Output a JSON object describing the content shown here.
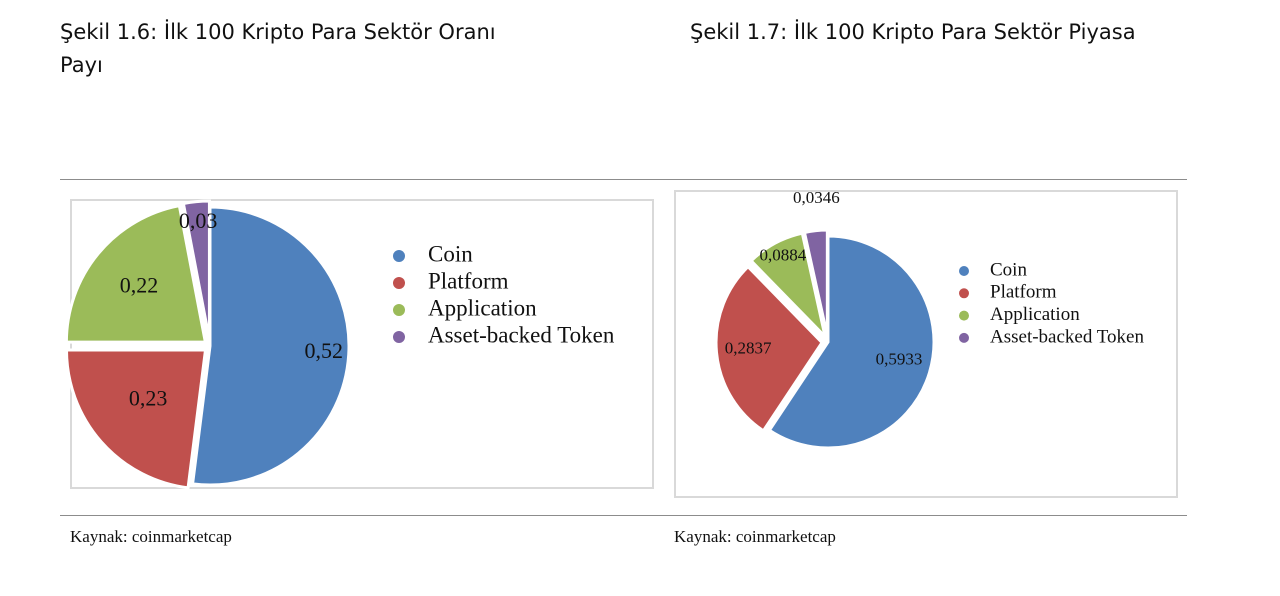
{
  "figures": [
    {
      "title": "Şekil 1.6: İlk 100 Kripto Para Sektör Oranı Payı",
      "source": "Kaynak: coinmarketcap"
    },
    {
      "title": "Şekil 1.7: İlk 100 Kripto Para Sektör Piyasa",
      "source": "Kaynak: coinmarketcap"
    }
  ],
  "chart_data": [
    {
      "type": "pie",
      "categories": [
        "Coin",
        "Platform",
        "Application",
        "Asset-backed Token"
      ],
      "values": [
        0.52,
        0.23,
        0.22,
        0.03
      ],
      "value_labels": [
        "0,52",
        "0,23",
        "0,22",
        "0,03"
      ],
      "colors": [
        "#4f81bd",
        "#c0504d",
        "#9bbb59",
        "#8064a2"
      ],
      "legend": [
        "Coin",
        "Platform",
        "Application",
        "Asset-backed Token"
      ],
      "legend_position": "right",
      "exploded": true
    },
    {
      "type": "pie",
      "categories": [
        "Coin",
        "Platform",
        "Application",
        "Asset-backed Token"
      ],
      "values": [
        0.5933,
        0.2837,
        0.0884,
        0.0346
      ],
      "value_labels": [
        "0,5933",
        "0,2837",
        "0,0884",
        "0,0346"
      ],
      "colors": [
        "#4f81bd",
        "#c0504d",
        "#9bbb59",
        "#8064a2"
      ],
      "legend": [
        "Coin",
        "Platform",
        "Application",
        "Asset-backed Token"
      ],
      "legend_position": "right",
      "exploded": true
    }
  ]
}
